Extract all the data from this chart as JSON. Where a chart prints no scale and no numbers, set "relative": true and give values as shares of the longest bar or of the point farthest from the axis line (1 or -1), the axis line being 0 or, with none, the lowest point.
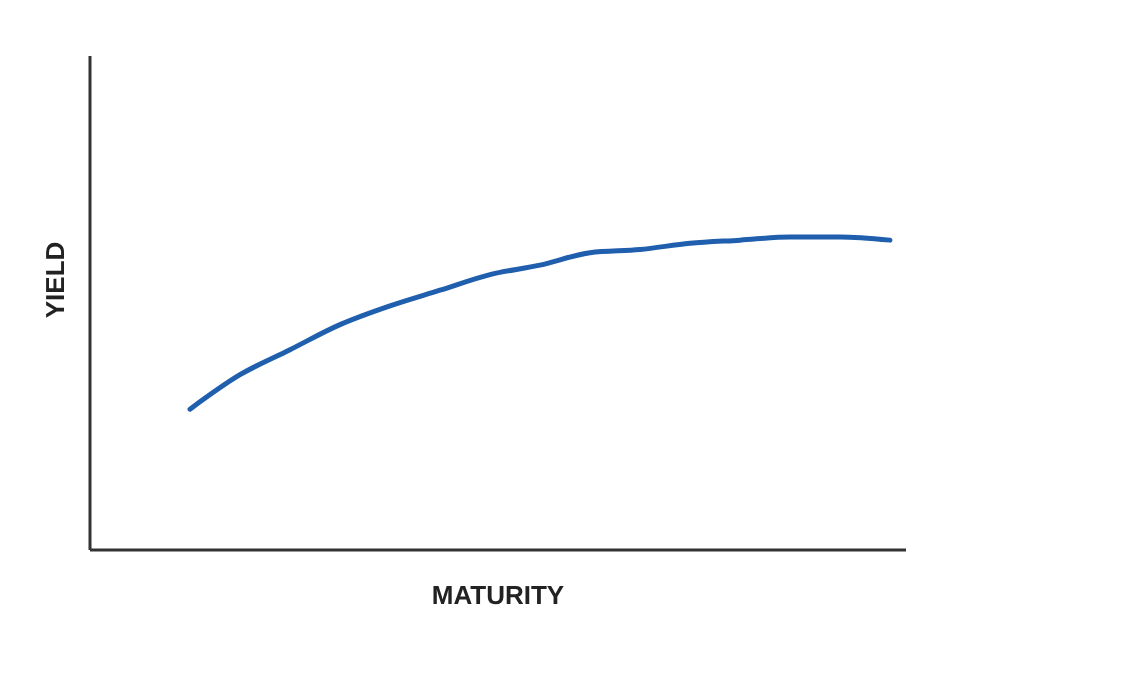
{
  "chart_data": {
    "type": "line",
    "relative": true,
    "xlabel": "MATURITY",
    "ylabel": "YIELD",
    "categories": [
      null,
      null,
      null,
      null,
      null,
      null,
      null,
      null,
      null,
      null,
      null,
      null,
      null,
      null,
      null
    ],
    "series": [
      {
        "color": "#1f5fad",
        "values": [
          0.45,
          0.56,
          0.64,
          0.72,
          0.78,
          0.83,
          0.88,
          0.91,
          0.95,
          0.96,
          0.98,
          0.99,
          1,
          1,
          0.99
        ]
      }
    ],
    "grid": false,
    "marker": "none",
    "line_style": "solid"
  }
}
